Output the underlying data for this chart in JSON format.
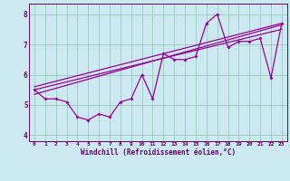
{
  "title": "",
  "xlabel": "Windchill (Refroidissement éolien,°C)",
  "ylabel": "",
  "bg_color": "#cce8f0",
  "line_color": "#990099",
  "grid_color": "#99ccbb",
  "text_color": "#660066",
  "axis_color": "#660066",
  "xlim": [
    -0.5,
    23.5
  ],
  "ylim": [
    3.8,
    8.35
  ],
  "xticks": [
    0,
    1,
    2,
    3,
    4,
    5,
    6,
    7,
    8,
    9,
    10,
    11,
    12,
    13,
    14,
    15,
    16,
    17,
    18,
    19,
    20,
    21,
    22,
    23
  ],
  "yticks": [
    4,
    5,
    6,
    7,
    8
  ],
  "main_y": [
    5.5,
    5.2,
    5.2,
    5.1,
    4.6,
    4.5,
    4.7,
    4.6,
    5.1,
    5.2,
    6.0,
    5.2,
    6.7,
    6.5,
    6.5,
    6.6,
    7.7,
    8.0,
    6.9,
    7.1,
    7.1,
    7.2,
    5.9,
    7.7
  ],
  "trend1_x": [
    0,
    23
  ],
  "trend1_y": [
    5.35,
    7.65
  ],
  "trend2_x": [
    0,
    23
  ],
  "trend2_y": [
    5.5,
    7.5
  ],
  "trend3_x": [
    0,
    23
  ],
  "trend3_y": [
    5.6,
    7.7
  ]
}
